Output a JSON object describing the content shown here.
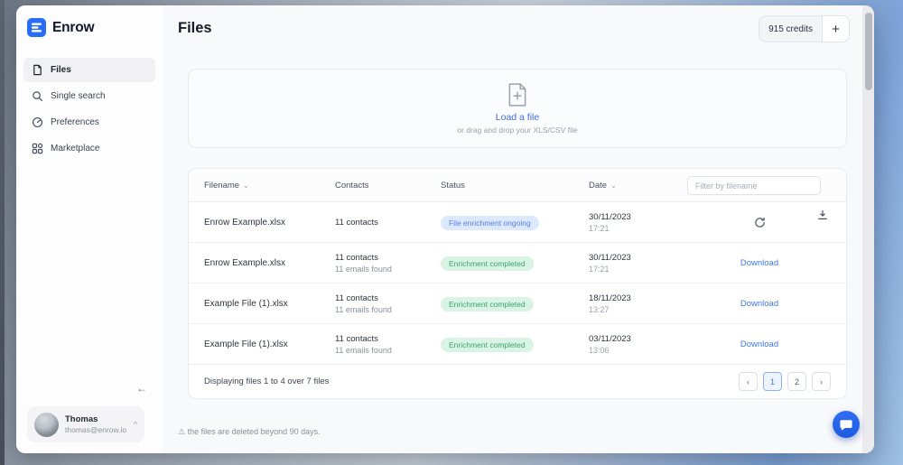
{
  "brand": {
    "name": "Enrow"
  },
  "header": {
    "title": "Files",
    "credits_label": "915 credits",
    "add_credits_label": "+"
  },
  "sidebar": {
    "items": [
      {
        "label": "Files"
      },
      {
        "label": "Single search"
      },
      {
        "label": "Preferences"
      },
      {
        "label": "Marketplace"
      }
    ],
    "collapse_label": "←",
    "user": {
      "name": "Thomas",
      "email": "thomas@enrow.io",
      "caret": "^"
    }
  },
  "dropzone": {
    "link_label": "Load a file",
    "hint": "or drag and drop your XLS/CSV file"
  },
  "table": {
    "columns": [
      {
        "label": "Filename",
        "sortable": true
      },
      {
        "label": "Contacts",
        "sortable": false
      },
      {
        "label": "Status",
        "sortable": false
      },
      {
        "label": "Date",
        "sortable": true
      }
    ],
    "filter_placeholder": "Filter by filename",
    "rows": [
      {
        "filename": "Enrow Example.xlsx",
        "contacts_line1": "11 contacts",
        "contacts_line2": "",
        "status": {
          "label": "File enrichment ongoing",
          "type": "ongoing"
        },
        "date": "30/11/2023",
        "time": "17:21",
        "action": {
          "type": "spinner"
        },
        "corner_download": true
      },
      {
        "filename": "Enrow Example.xlsx",
        "contacts_line1": "11 contacts",
        "contacts_line2": "11 emails found",
        "status": {
          "label": "Enrichment completed",
          "type": "completed"
        },
        "date": "30/11/2023",
        "time": "17:21",
        "action": {
          "type": "link",
          "label": "Download"
        },
        "corner_download": false
      },
      {
        "filename": "Example File (1).xlsx",
        "contacts_line1": "11 contacts",
        "contacts_line2": "11 emails found",
        "status": {
          "label": "Enrichment completed",
          "type": "completed"
        },
        "date": "18/11/2023",
        "time": "13:27",
        "action": {
          "type": "link",
          "label": "Download"
        },
        "corner_download": false
      },
      {
        "filename": "Example File (1).xlsx",
        "contacts_line1": "11 contacts",
        "contacts_line2": "11 emails found",
        "status": {
          "label": "Enrichment completed",
          "type": "completed"
        },
        "date": "03/11/2023",
        "time": "13:06",
        "action": {
          "type": "link",
          "label": "Download"
        },
        "corner_download": false
      }
    ],
    "summary": "Displaying files 1 to 4 over 7 files",
    "pagination": [
      {
        "label": "‹",
        "active": false
      },
      {
        "label": "1",
        "active": true
      },
      {
        "label": "2",
        "active": false
      },
      {
        "label": "›",
        "active": false
      }
    ]
  },
  "footnote": "⚠  the files are deleted beyond 90 days.",
  "colors": {
    "accent": "#2a6df5",
    "link": "#3c79e6",
    "ongoing_bg": "#dce8fd",
    "ongoing_text": "#5b7fe8",
    "completed_bg": "#d9f3e4",
    "completed_text": "#3da36f"
  }
}
